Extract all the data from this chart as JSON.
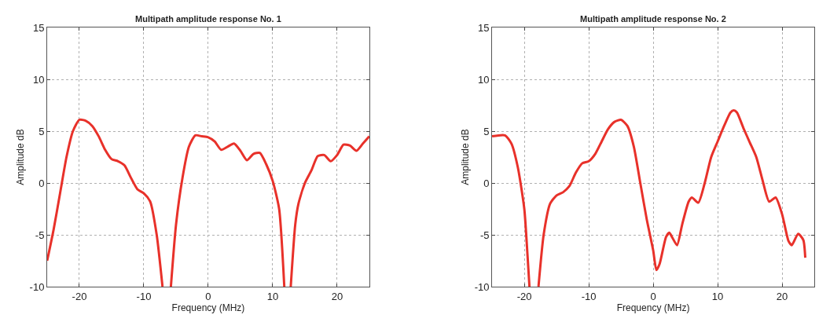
{
  "chart_data": [
    {
      "type": "line",
      "title": "Multipath amplitude response No. 1",
      "xlabel": "Frequency (MHz)",
      "ylabel": "Amplitude dB",
      "xlim": [
        -25,
        25
      ],
      "ylim": [
        -10,
        15
      ],
      "xticks": [
        -20,
        -10,
        0,
        10,
        20
      ],
      "yticks": [
        -10,
        -5,
        0,
        5,
        10,
        15
      ],
      "grid": true,
      "series": [
        {
          "color": "#e8312a",
          "x": [
            -25,
            -24,
            -23,
            -22,
            -21,
            -20,
            -19,
            -18,
            -17,
            -16,
            -15,
            -14,
            -13,
            -12,
            -11,
            -10,
            -9,
            -8,
            -7.1,
            -6.5,
            -5.8,
            -5,
            -4,
            -3,
            -2,
            -1,
            0,
            1,
            2,
            3,
            4,
            5,
            6,
            7,
            8,
            9,
            10,
            11,
            11.8,
            12.3,
            12.8,
            13.5,
            14,
            15,
            16,
            17,
            18,
            19,
            20,
            21,
            22,
            23,
            24,
            25
          ],
          "values": [
            -7.5,
            -4.5,
            -1,
            2.5,
            5,
            6.1,
            6,
            5.5,
            4.5,
            3.2,
            2.3,
            2.1,
            1.7,
            0.5,
            -0.6,
            -1,
            -1.8,
            -5,
            -10,
            null,
            -10,
            -4,
            0.5,
            3.5,
            4.6,
            4.5,
            4.4,
            4,
            3.2,
            3.5,
            3.8,
            3.1,
            2.2,
            2.8,
            2.9,
            1.8,
            0.2,
            -2.5,
            -10,
            null,
            -10,
            -4,
            -2,
            0,
            1.2,
            2.6,
            2.7,
            2.1,
            2.7,
            3.7,
            3.6,
            3.1,
            3.8,
            4.5
          ]
        }
      ]
    },
    {
      "type": "line",
      "title": "Multipath amplitude response No. 2",
      "xlabel": "Frequency (MHz)",
      "ylabel": "Amplitude dB",
      "xlim": [
        -25,
        25
      ],
      "ylim": [
        -10,
        15
      ],
      "xticks": [
        -20,
        -10,
        0,
        10,
        20
      ],
      "yticks": [
        -10,
        -5,
        0,
        5,
        10,
        15
      ],
      "grid": true,
      "series": [
        {
          "color": "#e8312a",
          "x": [
            -25,
            -23,
            -22,
            -21,
            -20,
            -19.5,
            -19.2,
            -18.5,
            -17.8,
            -17,
            -16,
            -15,
            -14,
            -13,
            -12,
            -11,
            -10,
            -9,
            -8,
            -7,
            -6,
            -5,
            -4,
            -3,
            -2,
            -1,
            0,
            0.5,
            1,
            2,
            2.5,
            3,
            3.7,
            4.5,
            5.5,
            6,
            7,
            8,
            9,
            10,
            11,
            12,
            12.5,
            13,
            14,
            15,
            16,
            17,
            18,
            19,
            20,
            21,
            21.5,
            22.5,
            23.3,
            23.6
          ],
          "values": [
            4.5,
            4.6,
            3.8,
            1.5,
            -2.5,
            -7,
            -10,
            null,
            -10,
            -5,
            -2,
            -1.2,
            -0.9,
            -0.3,
            1,
            1.9,
            2.1,
            2.8,
            4,
            5.2,
            5.9,
            6.1,
            5.5,
            3.5,
            0,
            -3.5,
            -6.5,
            -8.4,
            -7.8,
            -5.2,
            -4.8,
            -5.3,
            -6,
            -4,
            -1.8,
            -1.4,
            -1.9,
            0,
            2.5,
            4,
            5.5,
            6.8,
            7,
            6.8,
            5.3,
            3.9,
            2.5,
            0.2,
            -1.8,
            -1.4,
            -3,
            -5.6,
            -6,
            -4.9,
            -5.5,
            -7.2
          ]
        }
      ]
    }
  ]
}
